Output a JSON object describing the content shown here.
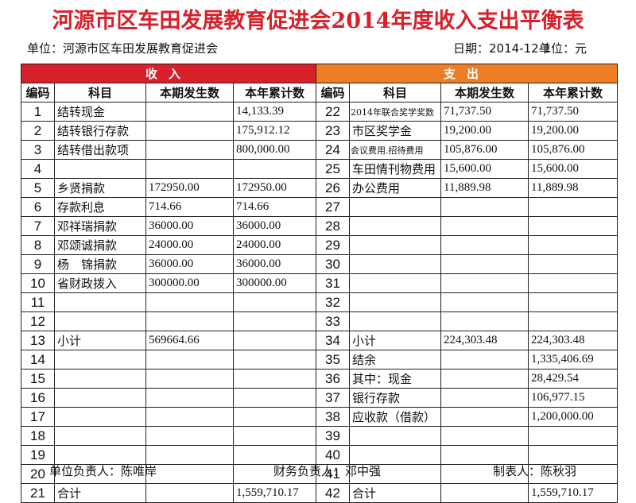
{
  "title": "河源市区车田发展教育促进会2014年度收入支出平衡表",
  "unit_label": "单位：河源市区车田发展教育促进会",
  "date_label": "日期：2014-12-1",
  "currency_label": "单位：元",
  "bands": {
    "income": "收入",
    "expense": "支出"
  },
  "headers": {
    "code": "编码",
    "subject": "科目",
    "current": "本期发生数",
    "ytd": "本年累计数"
  },
  "rows": [
    {
      "lc": "1",
      "ls": "结转现金",
      "la": "",
      "lb": "14,133.39",
      "rc": "22",
      "rs": "2014年联合奖学奖数",
      "ra": "71,737.50",
      "rb": "71,737.50"
    },
    {
      "lc": "2",
      "ls": "结转银行存款",
      "la": "",
      "lb": "175,912.12",
      "rc": "23",
      "rs": "市区奖学金",
      "ra": "19,200.00",
      "rb": "19,200.00"
    },
    {
      "lc": "3",
      "ls": "结转借出款项",
      "la": "",
      "lb": "800,000.00",
      "rc": "24",
      "rs": "会议费用.招待费用",
      "ra": "105,876.00",
      "rb": "105,876.00"
    },
    {
      "lc": "4",
      "ls": "",
      "la": "",
      "lb": "",
      "rc": "25",
      "rs": "车田情刊物费用",
      "ra": "15,600.00",
      "rb": "15,600.00"
    },
    {
      "lc": "5",
      "ls": "乡贤捐款",
      "la": "172950.00",
      "lb": "172950.00",
      "rc": "26",
      "rs": "办公费用",
      "ra": "11,889.98",
      "rb": "11,889.98"
    },
    {
      "lc": "6",
      "ls": "存款利息",
      "la": "714.66",
      "lb": "714.66",
      "rc": "27",
      "rs": "",
      "ra": "",
      "rb": ""
    },
    {
      "lc": "7",
      "ls": "邓祥瑞捐款",
      "la": "36000.00",
      "lb": "36000.00",
      "rc": "28",
      "rs": "",
      "ra": "",
      "rb": ""
    },
    {
      "lc": "8",
      "ls": "邓颂诚捐款",
      "la": "24000.00",
      "lb": "24000.00",
      "rc": "29",
      "rs": "",
      "ra": "",
      "rb": ""
    },
    {
      "lc": "9",
      "ls": "杨　锦捐款",
      "la": "36000.00",
      "lb": "36000.00",
      "rc": "30",
      "rs": "",
      "ra": "",
      "rb": ""
    },
    {
      "lc": "10",
      "ls": "省财政拨入",
      "la": "300000.00",
      "lb": "300000.00",
      "rc": "31",
      "rs": "",
      "ra": "",
      "rb": ""
    },
    {
      "lc": "11",
      "ls": "",
      "la": "",
      "lb": "",
      "rc": "32",
      "rs": "",
      "ra": "",
      "rb": ""
    },
    {
      "lc": "12",
      "ls": "",
      "la": "",
      "lb": "",
      "rc": "33",
      "rs": "",
      "ra": "",
      "rb": ""
    },
    {
      "lc": "13",
      "ls": "小计",
      "la": "569664.66",
      "lb": "",
      "rc": "34",
      "rs": "小计",
      "ra": "224,303.48",
      "rb": "224,303.48"
    },
    {
      "lc": "14",
      "ls": "",
      "la": "",
      "lb": "",
      "rc": "35",
      "rs": "结余",
      "ra": "",
      "rb": "1,335,406.69"
    },
    {
      "lc": "15",
      "ls": "",
      "la": "",
      "lb": "",
      "rc": "36",
      "rs": "其中：现金",
      "ra": "",
      "rb": "28,429.54"
    },
    {
      "lc": "16",
      "ls": "",
      "la": "",
      "lb": "",
      "rc": "37",
      "rs": "银行存款",
      "ra": "",
      "rb": "106,977.15"
    },
    {
      "lc": "17",
      "ls": "",
      "la": "",
      "lb": "",
      "rc": "38",
      "rs": "应收款（借款）",
      "ra": "",
      "rb": "1,200,000.00"
    },
    {
      "lc": "18",
      "ls": "",
      "la": "",
      "lb": "",
      "rc": "39",
      "rs": "",
      "ra": "",
      "rb": ""
    },
    {
      "lc": "19",
      "ls": "",
      "la": "",
      "lb": "",
      "rc": "40",
      "rs": "",
      "ra": "",
      "rb": ""
    },
    {
      "lc": "20",
      "ls": "",
      "la": "",
      "lb": "",
      "rc": "41",
      "rs": "",
      "ra": "",
      "rb": ""
    },
    {
      "lc": "21",
      "ls": "合计",
      "la": "",
      "lb": "1,559,710.17",
      "rc": "42",
      "rs": "合计",
      "ra": "",
      "rb": "1,559,710.17"
    }
  ],
  "footer": {
    "unit_head": "单位负责人：陈唯岸",
    "finance_head": "财务负责人：邓中强",
    "preparer": "制表人：陈秋羽"
  }
}
